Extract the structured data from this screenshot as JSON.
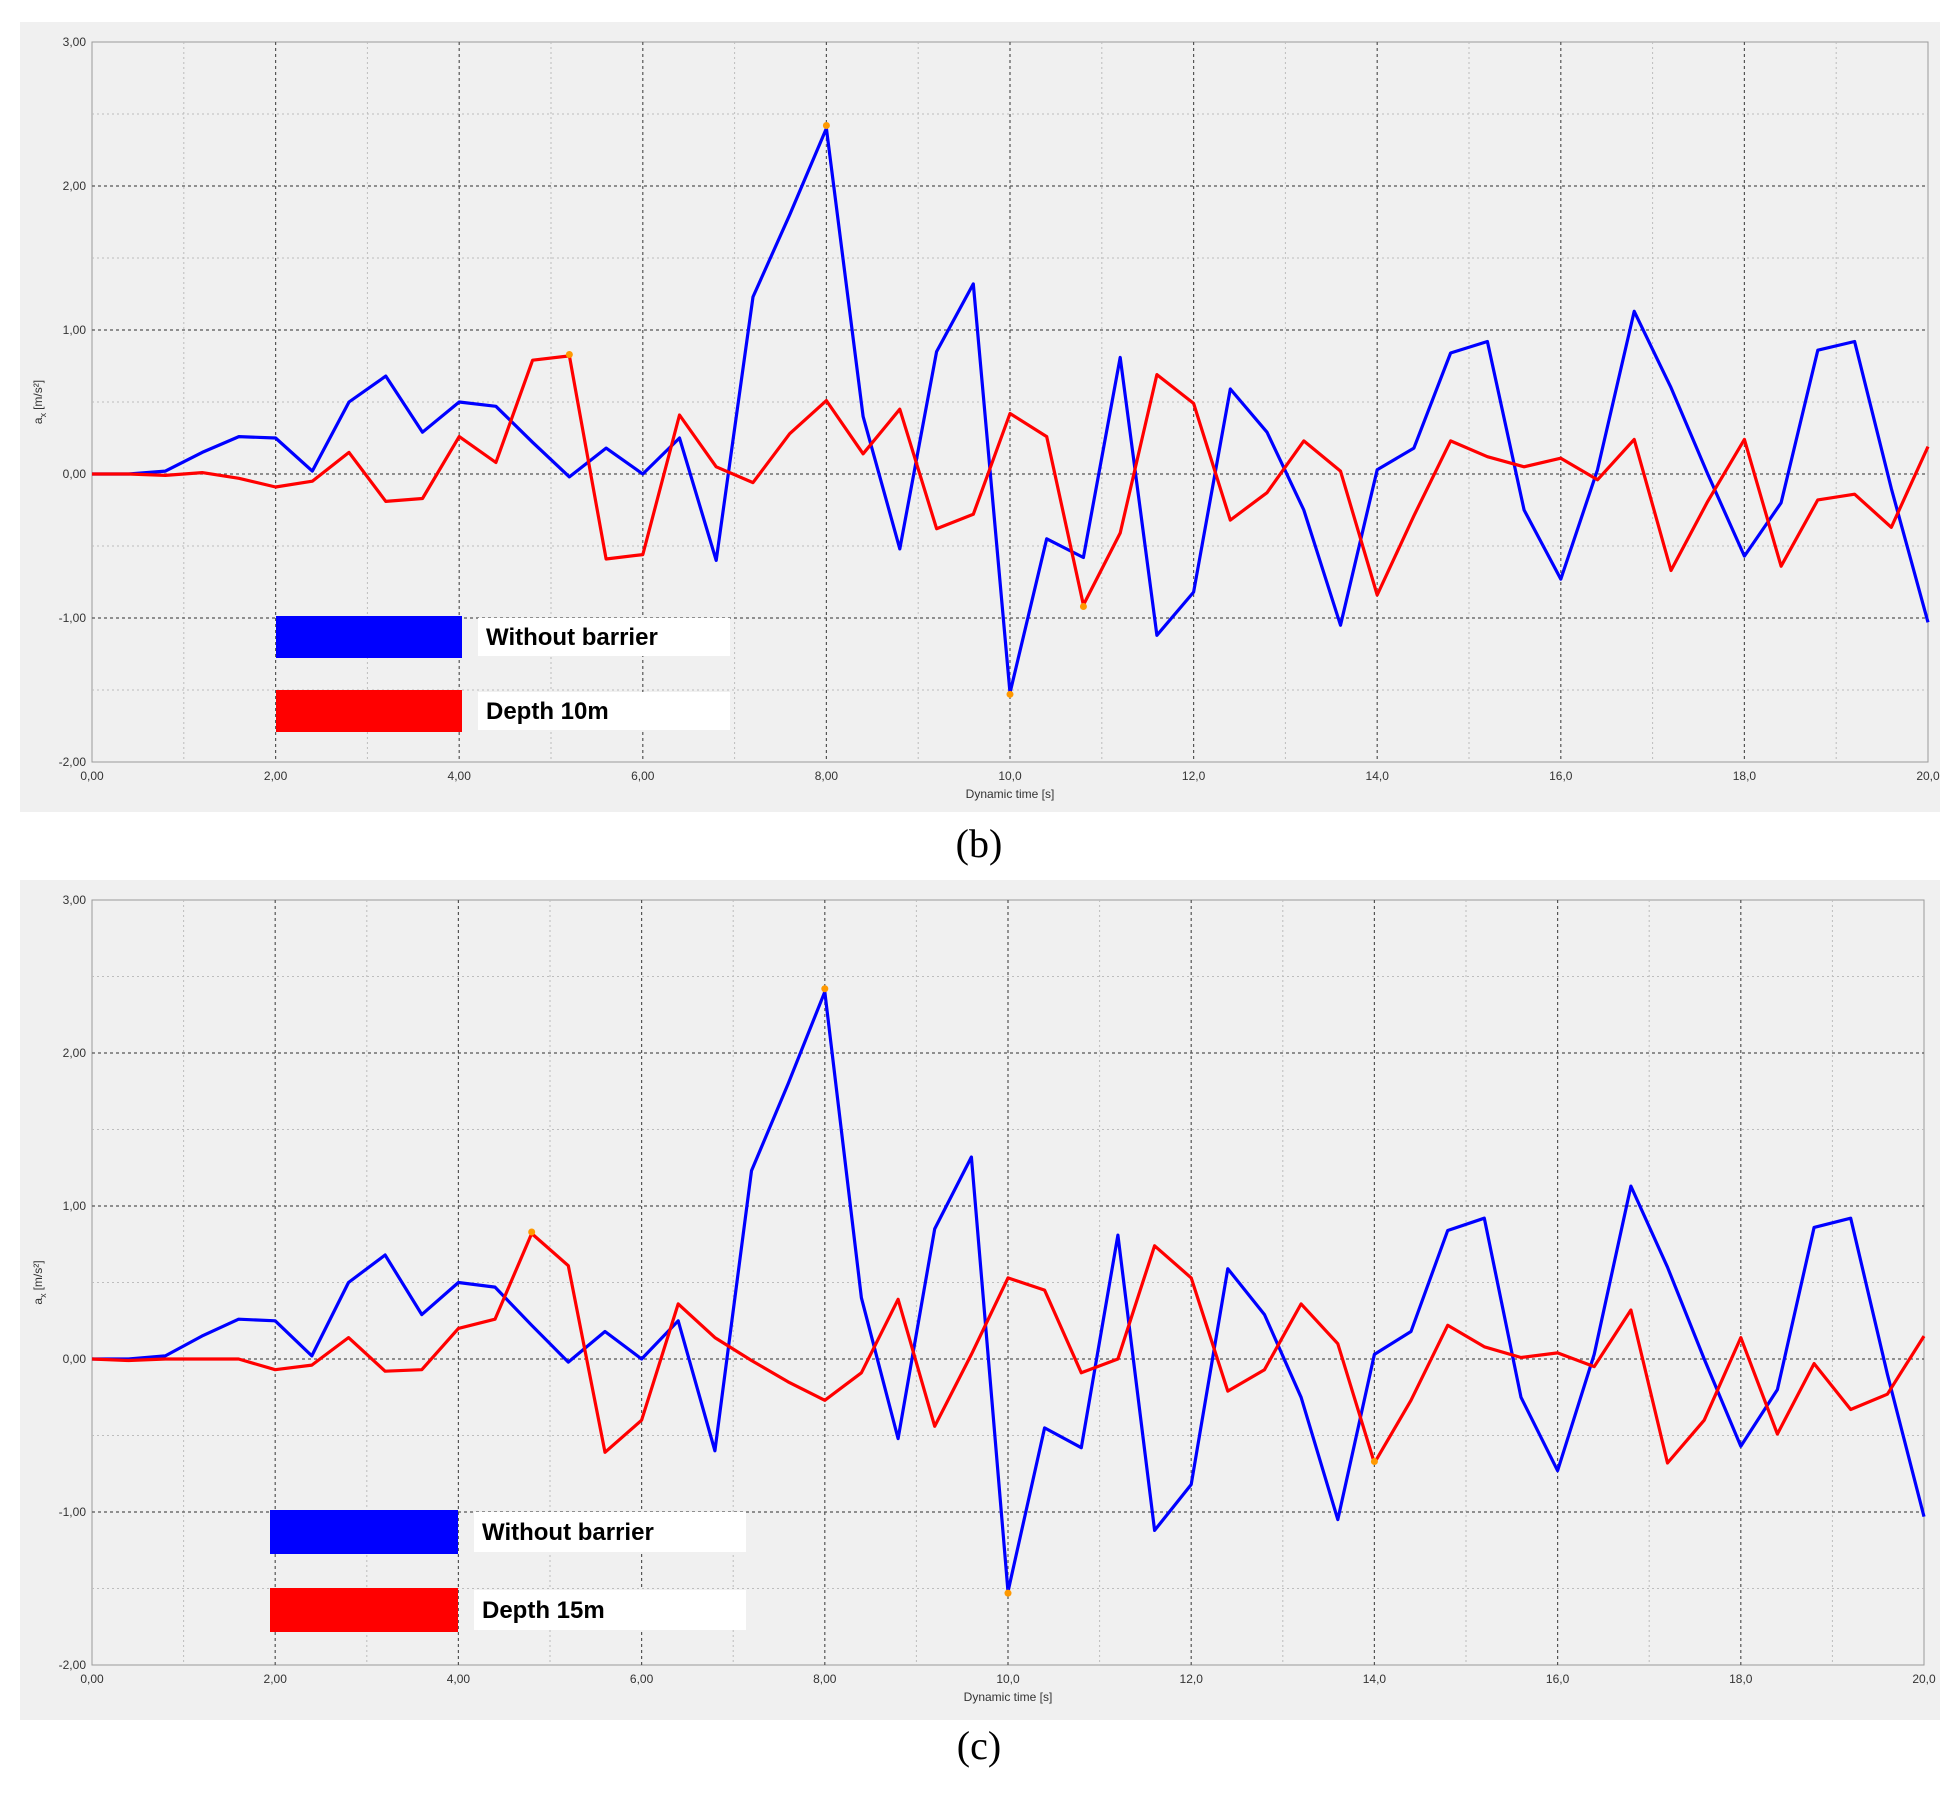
{
  "chart_data": [
    {
      "type": "line",
      "panel_label": "(b)",
      "xlabel": "Dynamic time [s]",
      "ylabel": "a_x [m/s²]",
      "ylabel_main": "a",
      "ylabel_sub": "x",
      "ylabel_unit": "[m/s²]",
      "xlim": [
        0,
        20
      ],
      "ylim": [
        -2,
        3
      ],
      "x_ticks": [
        "0,00",
        "2,00",
        "4,00",
        "6,00",
        "8,00",
        "10,0",
        "12,0",
        "14,0",
        "16,0",
        "18,0",
        "20,0"
      ],
      "y_ticks": [
        "3,00",
        "2,00",
        "1,00",
        "0,00",
        "-1,00",
        "-2,00"
      ],
      "grid": true,
      "legend_position": "bottom-left",
      "series": [
        {
          "name": "Without barrier",
          "color": "#0000ff",
          "x": [
            0,
            0.4,
            0.8,
            1.2,
            1.6,
            2.0,
            2.4,
            2.8,
            3.2,
            3.6,
            4.0,
            4.4,
            4.8,
            5.2,
            5.6,
            6.0,
            6.4,
            6.8,
            7.2,
            7.6,
            8.0,
            8.4,
            8.8,
            9.2,
            9.6,
            10.0,
            10.4,
            10.8,
            11.2,
            11.6,
            12.0,
            12.4,
            12.8,
            13.2,
            13.6,
            14.0,
            14.4,
            14.8,
            15.2,
            15.6,
            16.0,
            16.4,
            16.8,
            17.2,
            17.6,
            18.0,
            18.4,
            18.8,
            19.2,
            19.6,
            20.0
          ],
          "values": [
            0,
            0,
            0.02,
            0.15,
            0.26,
            0.25,
            0.02,
            0.5,
            0.68,
            0.29,
            0.5,
            0.47,
            0.22,
            -0.02,
            0.18,
            0.0,
            0.25,
            -0.6,
            1.23,
            1.8,
            2.4,
            0.4,
            -0.52,
            0.85,
            1.32,
            -1.52,
            -0.45,
            -0.58,
            0.81,
            -1.12,
            -0.82,
            0.59,
            0.29,
            -0.25,
            -1.05,
            0.03,
            0.18,
            0.84,
            0.92,
            -0.25,
            -0.73,
            0.03,
            1.13,
            0.6,
            0.0,
            -0.57,
            -0.2,
            0.86,
            0.92,
            -0.1,
            -1.03
          ],
          "markers": [
            [
              8.0,
              2.42
            ],
            [
              10.0,
              -1.53
            ]
          ]
        },
        {
          "name": "Depth 10m",
          "color": "#ff0000",
          "x": [
            0,
            0.4,
            0.8,
            1.2,
            1.6,
            2.0,
            2.4,
            2.8,
            3.2,
            3.6,
            4.0,
            4.4,
            4.8,
            5.2,
            5.6,
            6.0,
            6.4,
            6.8,
            7.2,
            7.6,
            8.0,
            8.4,
            8.8,
            9.2,
            9.6,
            10.0,
            10.4,
            10.8,
            11.2,
            11.6,
            12.0,
            12.4,
            12.8,
            13.2,
            13.6,
            14.0,
            14.4,
            14.8,
            15.2,
            15.6,
            16.0,
            16.4,
            16.8,
            17.2,
            17.6,
            18.0,
            18.4,
            18.8,
            19.2,
            19.6,
            20.0
          ],
          "values": [
            0,
            0,
            -0.01,
            0.01,
            -0.03,
            -0.09,
            -0.05,
            0.15,
            -0.19,
            -0.17,
            0.26,
            0.08,
            0.79,
            0.82,
            -0.59,
            -0.56,
            0.41,
            0.05,
            -0.06,
            0.28,
            0.51,
            0.14,
            0.45,
            -0.38,
            -0.28,
            0.42,
            0.26,
            -0.91,
            -0.41,
            0.69,
            0.49,
            -0.32,
            -0.13,
            0.23,
            0.02,
            -0.84,
            -0.29,
            0.23,
            0.12,
            0.05,
            0.11,
            -0.04,
            0.24,
            -0.67,
            -0.19,
            0.24,
            -0.64,
            -0.18,
            -0.14,
            -0.37,
            0.19
          ],
          "markers": [
            [
              5.2,
              0.83
            ],
            [
              10.8,
              -0.92
            ]
          ]
        }
      ]
    },
    {
      "type": "line",
      "panel_label": "(c)",
      "xlabel": "Dynamic time [s]",
      "ylabel": "a_x [m/s²]",
      "ylabel_main": "a",
      "ylabel_sub": "x",
      "ylabel_unit": "[m/s²]",
      "xlim": [
        0,
        20
      ],
      "ylim": [
        -2,
        3
      ],
      "x_ticks": [
        "0,00",
        "2,00",
        "4,00",
        "6,00",
        "8,00",
        "10,0",
        "12,0",
        "14,0",
        "16,0",
        "18,0",
        "20,0"
      ],
      "y_ticks": [
        "3,00",
        "2,00",
        "1,00",
        "0,00",
        "-1,00",
        "-2,00"
      ],
      "grid": true,
      "legend_position": "bottom-left",
      "series": [
        {
          "name": "Without barrier",
          "color": "#0000ff",
          "x": [
            0,
            0.4,
            0.8,
            1.2,
            1.6,
            2.0,
            2.4,
            2.8,
            3.2,
            3.6,
            4.0,
            4.4,
            4.8,
            5.2,
            5.6,
            6.0,
            6.4,
            6.8,
            7.2,
            7.6,
            8.0,
            8.4,
            8.8,
            9.2,
            9.6,
            10.0,
            10.4,
            10.8,
            11.2,
            11.6,
            12.0,
            12.4,
            12.8,
            13.2,
            13.6,
            14.0,
            14.4,
            14.8,
            15.2,
            15.6,
            16.0,
            16.4,
            16.8,
            17.2,
            17.6,
            18.0,
            18.4,
            18.8,
            19.2,
            19.6,
            20.0
          ],
          "values": [
            0,
            0,
            0.02,
            0.15,
            0.26,
            0.25,
            0.02,
            0.5,
            0.68,
            0.29,
            0.5,
            0.47,
            0.22,
            -0.02,
            0.18,
            0.0,
            0.25,
            -0.6,
            1.23,
            1.8,
            2.4,
            0.4,
            -0.52,
            0.85,
            1.32,
            -1.52,
            -0.45,
            -0.58,
            0.81,
            -1.12,
            -0.82,
            0.59,
            0.29,
            -0.25,
            -1.05,
            0.03,
            0.18,
            0.84,
            0.92,
            -0.25,
            -0.73,
            0.03,
            1.13,
            0.6,
            0.0,
            -0.57,
            -0.2,
            0.86,
            0.92,
            -0.1,
            -1.03
          ],
          "markers": [
            [
              8.0,
              2.42
            ],
            [
              10.0,
              -1.53
            ]
          ]
        },
        {
          "name": "Depth 15m",
          "color": "#ff0000",
          "x": [
            0,
            0.4,
            0.8,
            1.2,
            1.6,
            2.0,
            2.4,
            2.8,
            3.2,
            3.6,
            4.0,
            4.4,
            4.8,
            5.2,
            5.6,
            6.0,
            6.4,
            6.8,
            7.2,
            7.6,
            8.0,
            8.4,
            8.8,
            9.2,
            9.6,
            10.0,
            10.4,
            10.8,
            11.2,
            11.6,
            12.0,
            12.4,
            12.8,
            13.2,
            13.6,
            14.0,
            14.4,
            14.8,
            15.2,
            15.6,
            16.0,
            16.4,
            16.8,
            17.2,
            17.6,
            18.0,
            18.4,
            18.8,
            19.2,
            19.6,
            20.0
          ],
          "values": [
            0,
            -0.01,
            0,
            0,
            0,
            -0.07,
            -0.04,
            0.14,
            -0.08,
            -0.07,
            0.2,
            0.26,
            0.82,
            0.61,
            -0.61,
            -0.4,
            0.36,
            0.14,
            -0.01,
            -0.15,
            -0.27,
            -0.09,
            0.39,
            -0.44,
            0.03,
            0.53,
            0.45,
            -0.09,
            0.0,
            0.74,
            0.53,
            -0.21,
            -0.07,
            0.36,
            0.1,
            -0.68,
            -0.27,
            0.22,
            0.08,
            0.01,
            0.04,
            -0.05,
            0.32,
            -0.68,
            -0.4,
            0.14,
            -0.49,
            -0.03,
            -0.33,
            -0.23,
            0.15
          ],
          "markers": [
            [
              4.8,
              0.83
            ],
            [
              14.0,
              -0.67
            ]
          ]
        }
      ]
    }
  ]
}
